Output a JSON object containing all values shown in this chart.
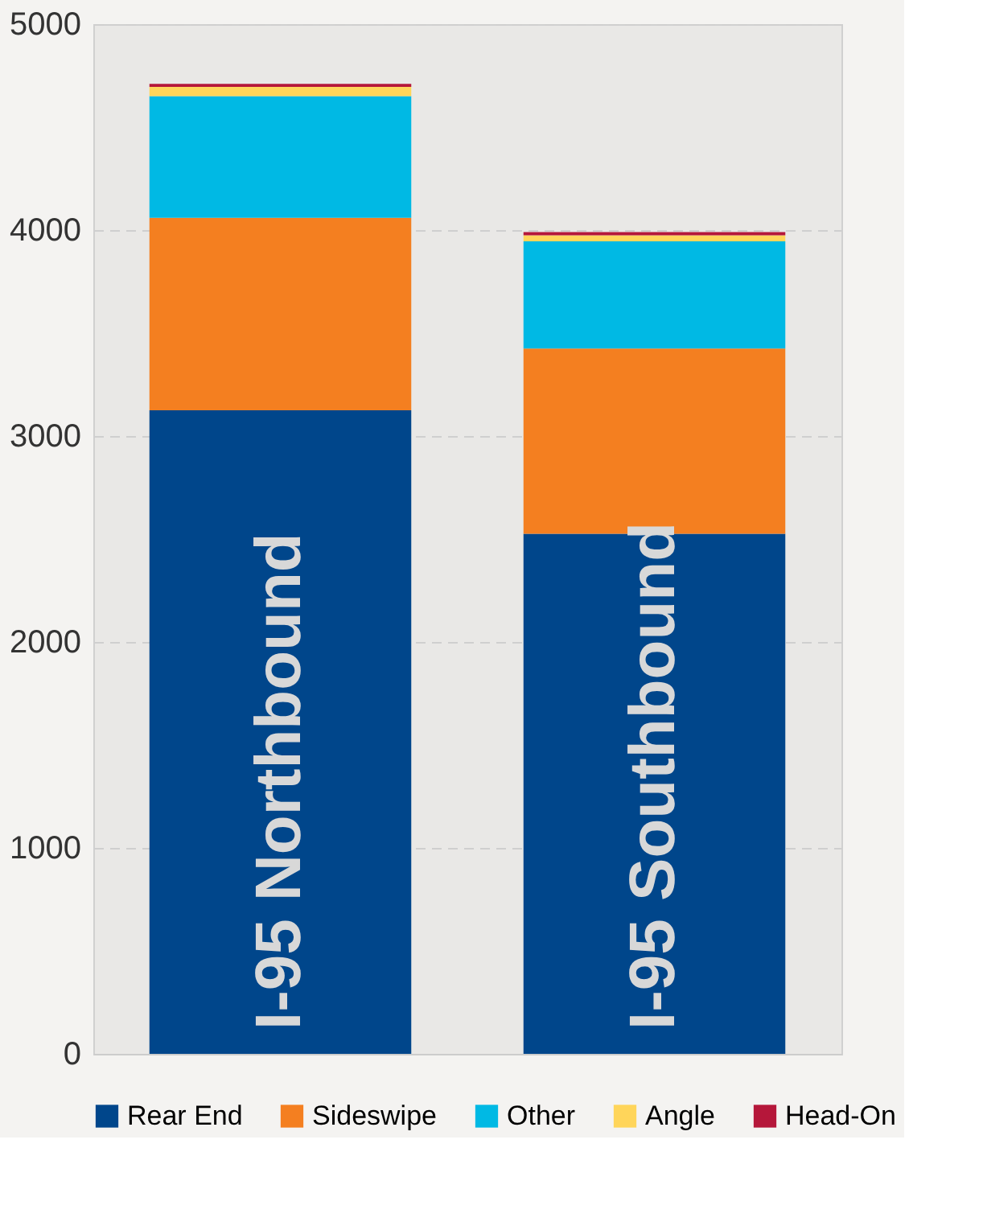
{
  "chart_data": {
    "type": "bar",
    "stacked": true,
    "categories": [
      "I-95 Northbound",
      "I-95 Southbound"
    ],
    "series": [
      {
        "name": "Rear End",
        "color": "#00468b",
        "values": [
          3125,
          2525
        ]
      },
      {
        "name": "Sideswipe",
        "color": "#f47f20",
        "values": [
          935,
          900
        ]
      },
      {
        "name": "Other",
        "color": "#00b9e4",
        "values": [
          590,
          520
        ]
      },
      {
        "name": "Angle",
        "color": "#ffd55a",
        "values": [
          45,
          30
        ]
      },
      {
        "name": "Head-On",
        "color": "#b5173a",
        "values": [
          15,
          15
        ]
      }
    ],
    "ylim": [
      0,
      5000
    ],
    "yticks": [
      0,
      1000,
      2000,
      3000,
      4000,
      5000
    ],
    "grid": "y",
    "legend": "bottom",
    "tick_labels": "y"
  }
}
